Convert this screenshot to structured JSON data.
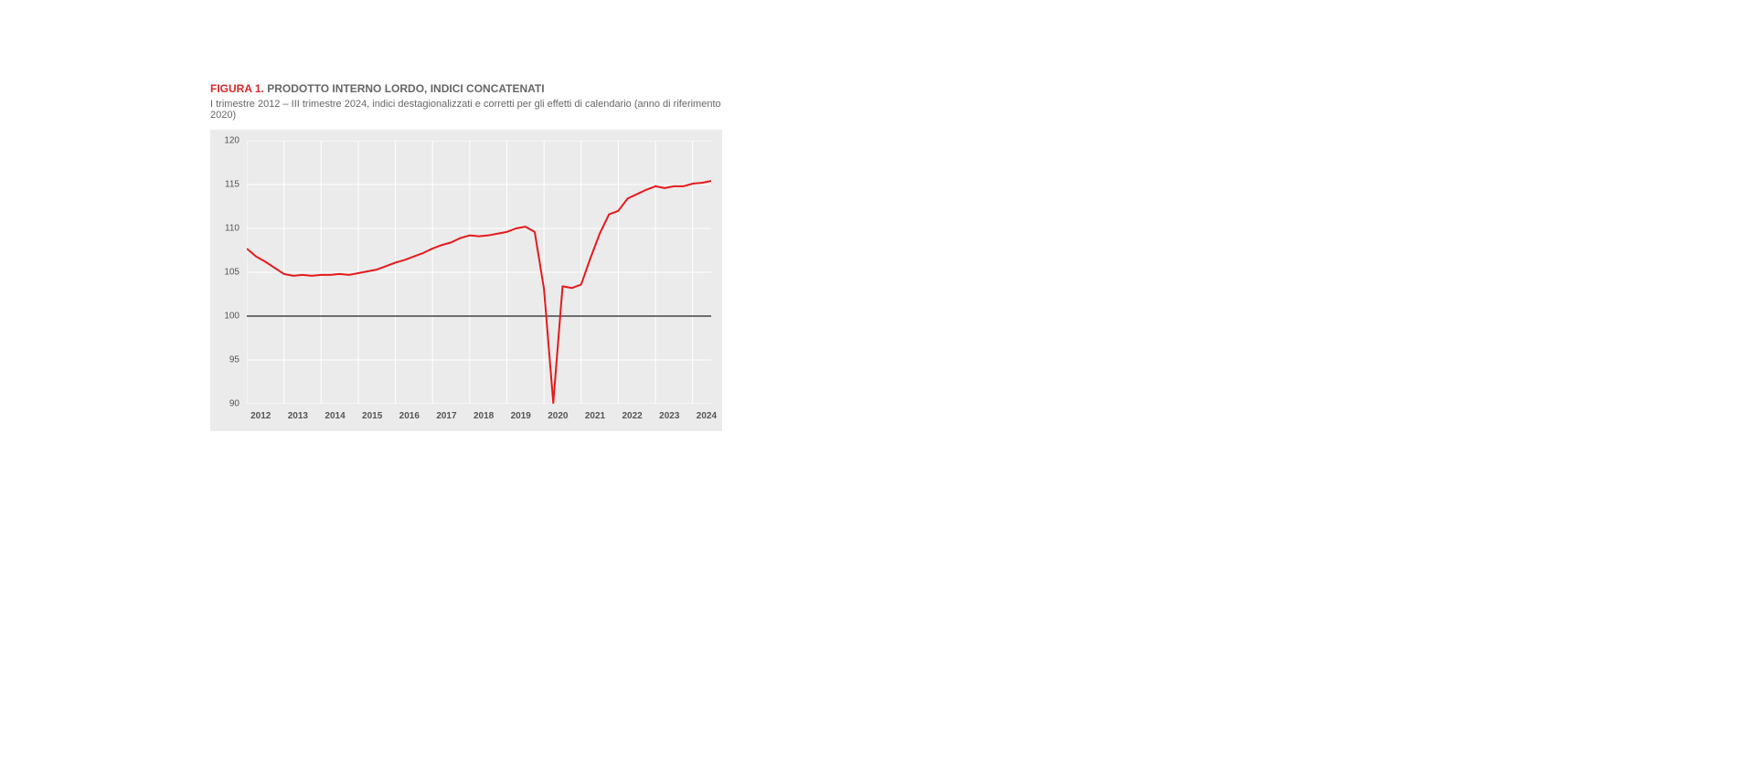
{
  "figure": {
    "number_label": "FIGURA 1.",
    "title": "PRODOTTO INTERNO LORDO, INDICI CONCATENATI",
    "subtitle": "I trimestre 2012 – III trimestre 2024, indici destagionalizzati e corretti per gli effetti di calendario (anno di riferimento 2020)"
  },
  "chart": {
    "type": "line",
    "background_color": "#ebebeb",
    "grid_color": "#ffffff",
    "grid_line_width": 1,
    "axis_label_color": "#555555",
    "axis_label_fontsize_pt": 10,
    "x_label_fontweight": "bold",
    "ref_line_value": 100,
    "ref_line_color": "#444444",
    "ref_line_width": 1.5,
    "line_color": "#e41a1c",
    "line_width": 2,
    "ylim": [
      90,
      120
    ],
    "ytick_step": 5,
    "y_ticks": [
      90,
      95,
      100,
      105,
      110,
      115,
      120
    ],
    "x_categories": [
      "2012",
      "2013",
      "2014",
      "2015",
      "2016",
      "2017",
      "2018",
      "2019",
      "2020",
      "2021",
      "2022",
      "2023",
      "2024"
    ],
    "x_major_tick_positions_quarter_index": [
      0,
      4,
      8,
      12,
      16,
      20,
      24,
      28,
      32,
      36,
      40,
      44,
      48
    ],
    "n_points": 51,
    "values": [
      107.7,
      106.8,
      106.2,
      105.5,
      104.8,
      104.6,
      104.7,
      104.6,
      104.7,
      104.7,
      104.8,
      104.7,
      104.9,
      105.1,
      105.3,
      105.7,
      106.1,
      106.4,
      106.8,
      107.2,
      107.7,
      108.1,
      108.4,
      108.9,
      109.2,
      109.1,
      109.2,
      109.4,
      109.6,
      110.0,
      110.2,
      109.6,
      103.1,
      90.1,
      103.4,
      103.2,
      103.6,
      106.6,
      109.4,
      111.6,
      112.0,
      113.4,
      113.9,
      114.4,
      114.8,
      114.6,
      114.8,
      114.8,
      115.1,
      115.2,
      115.4
    ]
  },
  "colors": {
    "figure_number": "#d62728",
    "title_text": "#666666",
    "subtitle_text": "#666666"
  }
}
